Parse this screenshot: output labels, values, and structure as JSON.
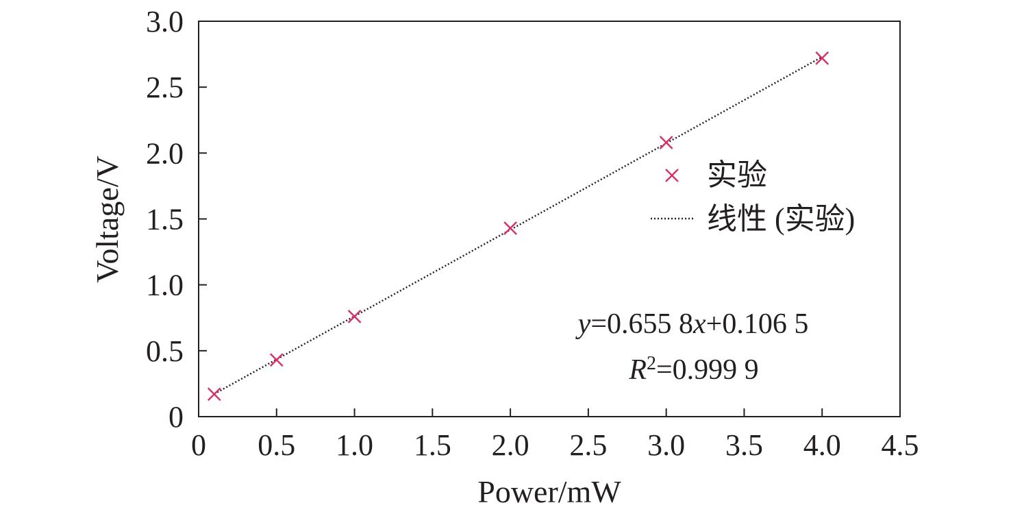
{
  "chart_data": {
    "type": "scatter",
    "xlabel": "Power/mW",
    "ylabel": "Voltage/V",
    "xlim": [
      0,
      4.5
    ],
    "ylim": [
      0,
      3.0
    ],
    "x_ticks": [
      "0",
      "0.5",
      "1.0",
      "1.5",
      "2.0",
      "2.5",
      "3.0",
      "3.5",
      "4.0",
      "4.5"
    ],
    "y_ticks": [
      "0",
      "0.5",
      "1.0",
      "1.5",
      "2.0",
      "2.5",
      "3.0"
    ],
    "grid": false,
    "legend_position": "right",
    "series": [
      {
        "name": "实验",
        "marker": "x",
        "color": "#d6336c",
        "x": [
          0.1,
          0.5,
          1.0,
          2.0,
          3.0,
          4.0
        ],
        "y": [
          0.17,
          0.43,
          0.76,
          1.43,
          2.08,
          2.72
        ]
      }
    ],
    "trendline": {
      "name": "线性 (实验)",
      "style": "dotted",
      "color": "#231f20",
      "slope": 0.6558,
      "intercept": 0.1065,
      "x_range": [
        0.1,
        4.0
      ]
    },
    "annotations": {
      "equation_y": "y",
      "equation_rest": "=0.655 8",
      "equation_x": "x",
      "equation_tail": "+0.106 5",
      "r_symbol": "R",
      "r_exp": "2",
      "r_value": "=0.999 9"
    }
  }
}
